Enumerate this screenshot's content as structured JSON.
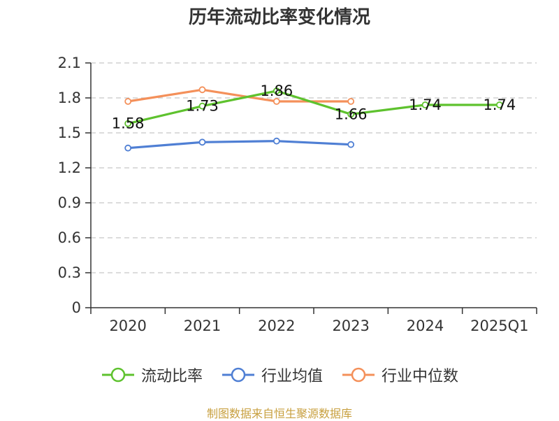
{
  "chart_data": {
    "type": "line",
    "title": "历年流动比率变化情况",
    "categories": [
      "2020",
      "2021",
      "2022",
      "2023",
      "2024",
      "2025Q1"
    ],
    "yticks": [
      "0",
      "0.3",
      "0.6",
      "0.9",
      "1.2",
      "1.5",
      "1.8",
      "2.1"
    ],
    "ylim": [
      0,
      2.1
    ],
    "grid": true,
    "legend_position": "bottom",
    "series": [
      {
        "name": "流动比率",
        "color": "#5ec22e",
        "values": [
          1.58,
          1.73,
          1.86,
          1.66,
          1.74,
          1.74
        ],
        "labels": [
          "1.58",
          "1.73",
          "1.86",
          "1.66",
          "1.74",
          "1.74"
        ]
      },
      {
        "name": "行业均值",
        "color": "#4f7fd4",
        "values": [
          1.37,
          1.42,
          1.43,
          1.4,
          null,
          null
        ]
      },
      {
        "name": "行业中位数",
        "color": "#f4905a",
        "values": [
          1.77,
          1.87,
          1.77,
          1.77,
          null,
          null
        ]
      }
    ]
  },
  "source_text": "制图数据来自恒生聚源数据库"
}
